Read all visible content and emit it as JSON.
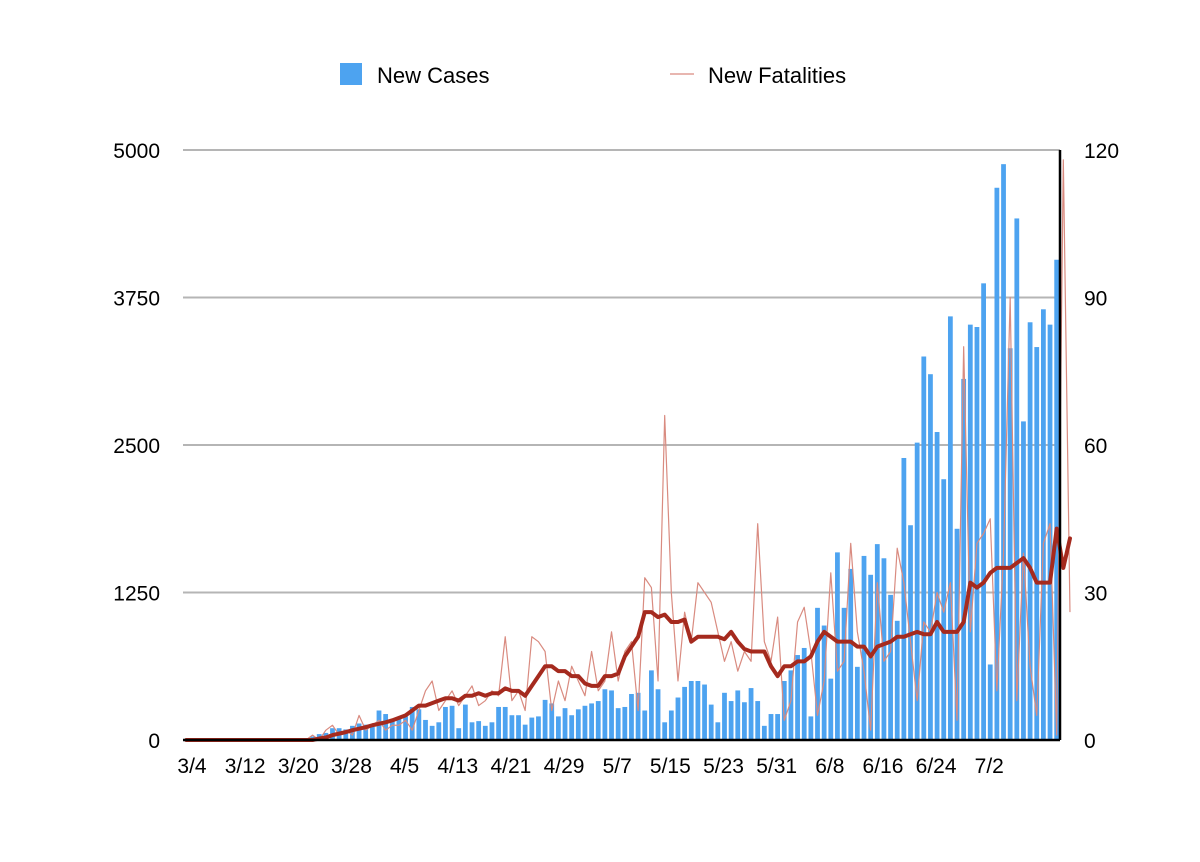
{
  "chart_data": {
    "type": "bar",
    "title": "",
    "xlabel": "",
    "ylabel": "",
    "y2label": "",
    "ylim": [
      0,
      5000
    ],
    "y2lim": [
      0,
      120
    ],
    "yticks": [
      "0",
      "1250",
      "2500",
      "3750",
      "5000"
    ],
    "y2ticks": [
      "0",
      "30",
      "60",
      "90",
      "120"
    ],
    "xticks": [
      "3/4",
      "3/12",
      "3/20",
      "3/28",
      "4/5",
      "4/13",
      "4/21",
      "4/29",
      "5/7",
      "5/15",
      "5/23",
      "5/31",
      "6/8",
      "6/16",
      "6/24",
      "7/2"
    ],
    "grid": true,
    "legend_position": "top",
    "colors": {
      "cases": "#4da3f0",
      "fatalities_thin": "#d98b80",
      "fatalities_avg": "#a52a1e",
      "grid": "#b5b5b5",
      "axis": "#000000"
    },
    "series": [
      {
        "name": "New Cases",
        "type": "bar",
        "axis": "left",
        "values": [
          0,
          0,
          0,
          0,
          0,
          0,
          0,
          0,
          0,
          0,
          0,
          0,
          0,
          0,
          0,
          0,
          0,
          0,
          0,
          30,
          50,
          60,
          100,
          100,
          90,
          120,
          140,
          130,
          110,
          250,
          220,
          170,
          180,
          200,
          280,
          260,
          170,
          120,
          150,
          280,
          290,
          100,
          300,
          150,
          160,
          120,
          150,
          280,
          280,
          210,
          210,
          130,
          190,
          200,
          340,
          310,
          200,
          270,
          210,
          260,
          290,
          310,
          330,
          430,
          420,
          270,
          280,
          390,
          400,
          250,
          590,
          430,
          150,
          250,
          360,
          450,
          500,
          500,
          470,
          300,
          150,
          400,
          330,
          420,
          320,
          440,
          330,
          120,
          220,
          220,
          500,
          590,
          720,
          780,
          200,
          1120,
          970,
          520,
          1590,
          1120,
          1450,
          620,
          1560,
          1400,
          1660,
          1540,
          1230,
          1010,
          2390,
          1820,
          2520,
          3250,
          3100,
          2610,
          2210,
          3590,
          1790,
          3060,
          3520,
          3500,
          3870,
          640,
          4680,
          4880,
          3320,
          4420,
          2700,
          3540,
          3330,
          3650,
          3520,
          4070
        ]
      },
      {
        "name": "New Fatalities",
        "type": "line",
        "axis": "right",
        "values": [
          0,
          0,
          0,
          0,
          0,
          0,
          0,
          0,
          0,
          0,
          0,
          0,
          0,
          0,
          0,
          0,
          0,
          0,
          0,
          1,
          0,
          2,
          3,
          1,
          2,
          1,
          5,
          2,
          3,
          4,
          2,
          3,
          3,
          4,
          2,
          6,
          10,
          12,
          6,
          8,
          10,
          7,
          9,
          11,
          7,
          8,
          10,
          9,
          21,
          8,
          10,
          6,
          21,
          20,
          18,
          6,
          12,
          8,
          15,
          12,
          9,
          18,
          10,
          12,
          22,
          12,
          18,
          20,
          6,
          33,
          31,
          12,
          66,
          30,
          12,
          26,
          20,
          32,
          30,
          28,
          22,
          16,
          20,
          14,
          18,
          16,
          44,
          20,
          16,
          25,
          4,
          8,
          24,
          27,
          18,
          5,
          12,
          34,
          14,
          16,
          40,
          22,
          14,
          2,
          32,
          16,
          18,
          39,
          32,
          20,
          8,
          24,
          22,
          30,
          26,
          32,
          4,
          80,
          22,
          40,
          42,
          45,
          10,
          38,
          90,
          8,
          38,
          15,
          5,
          40,
          44,
          1,
          118,
          26
        ]
      },
      {
        "name": "",
        "type": "line",
        "axis": "right",
        "values": [
          0,
          0,
          0,
          0,
          0,
          0,
          0,
          0,
          0,
          0,
          0,
          0,
          0,
          0,
          0,
          0,
          0,
          0,
          0,
          0,
          0.3,
          0.5,
          1,
          1.3,
          1.6,
          2,
          2.3,
          2.6,
          3,
          3.3,
          3.6,
          4,
          4.5,
          5,
          6,
          7,
          7,
          7.5,
          8,
          8.5,
          8.5,
          8,
          9,
          9,
          9.5,
          9,
          9.5,
          9.5,
          10.5,
          10,
          10,
          9,
          11,
          13,
          15,
          15,
          14,
          14,
          13,
          13,
          11.5,
          11,
          11,
          13,
          13,
          13.5,
          17,
          19,
          21,
          26,
          26,
          25,
          25.5,
          24,
          24,
          24.5,
          20,
          21,
          21,
          21,
          21,
          20.5,
          22,
          20,
          18.5,
          18,
          18,
          18,
          15,
          13,
          15,
          15,
          16,
          16,
          17,
          20,
          22,
          21,
          20,
          20,
          20,
          19,
          19,
          17,
          19,
          19.5,
          20,
          21,
          21,
          21.5,
          22,
          21.5,
          21.5,
          24,
          22,
          22,
          22,
          24,
          32,
          31,
          32,
          34,
          35,
          35,
          35,
          36,
          37,
          35,
          32,
          32,
          32,
          43,
          35,
          41
        ]
      }
    ]
  }
}
